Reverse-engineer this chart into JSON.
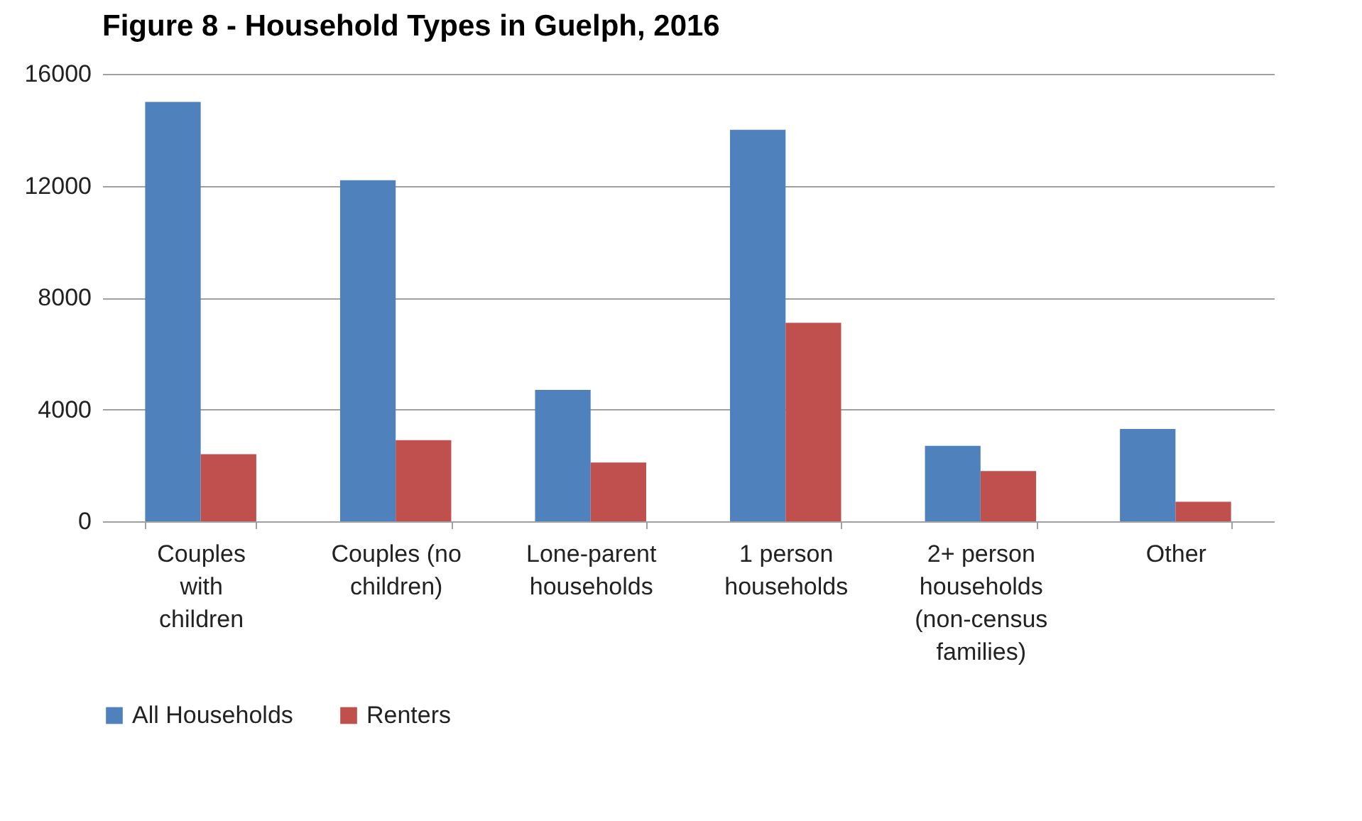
{
  "chart_data": {
    "type": "bar",
    "title": "Figure 8 - Household Types in Guelph, 2016",
    "categories": [
      "Couples with children",
      "Couples (no children)",
      "Lone-parent households",
      "1 person households",
      "2+ person households (non-census families)",
      "Other"
    ],
    "series": [
      {
        "name": "All Households",
        "color": "#4f81bd",
        "values": [
          15000,
          12200,
          4700,
          14000,
          2700,
          3300
        ]
      },
      {
        "name": "Renters",
        "color": "#c0504d",
        "values": [
          2400,
          2900,
          2100,
          7100,
          1800,
          700
        ]
      }
    ],
    "ylim": [
      0,
      16000
    ],
    "yticks": [
      0,
      4000,
      8000,
      12000,
      16000
    ],
    "grid": "y",
    "legend": "bottom"
  }
}
